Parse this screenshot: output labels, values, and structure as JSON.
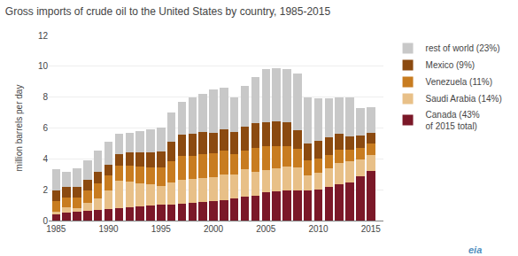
{
  "chart_data": {
    "type": "bar",
    "stacked": true,
    "title": "Gross imports of crude oil to the United States by country, 1985-2015",
    "ylabel": "million barrels per day",
    "x": [
      1985,
      1986,
      1987,
      1988,
      1989,
      1990,
      1991,
      1992,
      1993,
      1994,
      1995,
      1996,
      1997,
      1998,
      1999,
      2000,
      2001,
      2002,
      2003,
      2004,
      2005,
      2006,
      2007,
      2008,
      2009,
      2010,
      2011,
      2012,
      2013,
      2014,
      2015
    ],
    "series": [
      {
        "name": "Canada (43%\nof 2015 total)",
        "color": "#7b1828",
        "values": [
          0.39,
          0.53,
          0.57,
          0.63,
          0.68,
          0.73,
          0.8,
          0.88,
          0.93,
          0.97,
          1.01,
          1.05,
          1.1,
          1.14,
          1.19,
          1.25,
          1.31,
          1.45,
          1.55,
          1.62,
          1.82,
          1.92,
          1.96,
          1.93,
          1.93,
          2.0,
          2.17,
          2.35,
          2.47,
          2.85,
          3.2
        ]
      },
      {
        "name": "Saudi Arabia (14%)",
        "color": "#e8c088",
        "values": [
          0.17,
          0.34,
          0.26,
          0.51,
          0.75,
          1.2,
          1.79,
          1.65,
          1.51,
          1.39,
          1.25,
          1.42,
          1.55,
          1.55,
          1.55,
          1.55,
          1.68,
          1.55,
          1.78,
          1.55,
          1.45,
          1.44,
          1.52,
          1.53,
          0.99,
          1.1,
          1.19,
          1.37,
          1.35,
          1.1,
          1.05
        ]
      },
      {
        "name": "Venezuela (11%)",
        "color": "#c87c20",
        "values": [
          0.7,
          0.62,
          0.66,
          0.79,
          0.96,
          1.0,
          0.97,
          1.04,
          1.04,
          1.08,
          1.16,
          1.38,
          1.55,
          1.53,
          1.55,
          1.55,
          1.55,
          1.28,
          1.21,
          1.53,
          1.53,
          1.44,
          1.36,
          1.19,
          1.0,
          0.91,
          0.91,
          0.9,
          0.77,
          0.77,
          0.77
        ]
      },
      {
        "name": "Mexico (9%)",
        "color": "#8b4a10",
        "values": [
          0.69,
          0.68,
          0.67,
          0.7,
          0.75,
          0.69,
          0.76,
          0.84,
          0.94,
          1.0,
          1.08,
          1.24,
          1.38,
          1.43,
          1.44,
          1.35,
          1.35,
          1.49,
          1.57,
          1.62,
          1.55,
          1.65,
          1.53,
          1.19,
          1.09,
          1.13,
          1.12,
          1.0,
          0.84,
          0.77,
          0.68
        ]
      },
      {
        "name": "rest of world (23%)",
        "color": "#c8c8c8",
        "values": [
          1.38,
          1.01,
          1.2,
          1.27,
          1.42,
          1.49,
          1.32,
          1.29,
          1.37,
          1.46,
          1.55,
          1.91,
          2.1,
          2.35,
          2.47,
          2.8,
          2.71,
          2.23,
          2.59,
          3.01,
          3.45,
          3.45,
          3.47,
          3.67,
          2.99,
          2.76,
          2.51,
          2.38,
          2.57,
          1.81,
          1.67
        ]
      }
    ],
    "xlim": [
      1984.3,
      2016.2
    ],
    "xticks": [
      1985,
      1990,
      1995,
      2000,
      2005,
      2010,
      2015
    ],
    "ylim": [
      0,
      12
    ],
    "yticks": [
      0,
      2,
      4,
      6,
      8,
      10,
      12
    ],
    "grid": true,
    "legend": "right",
    "annotations": [
      "eia"
    ]
  }
}
